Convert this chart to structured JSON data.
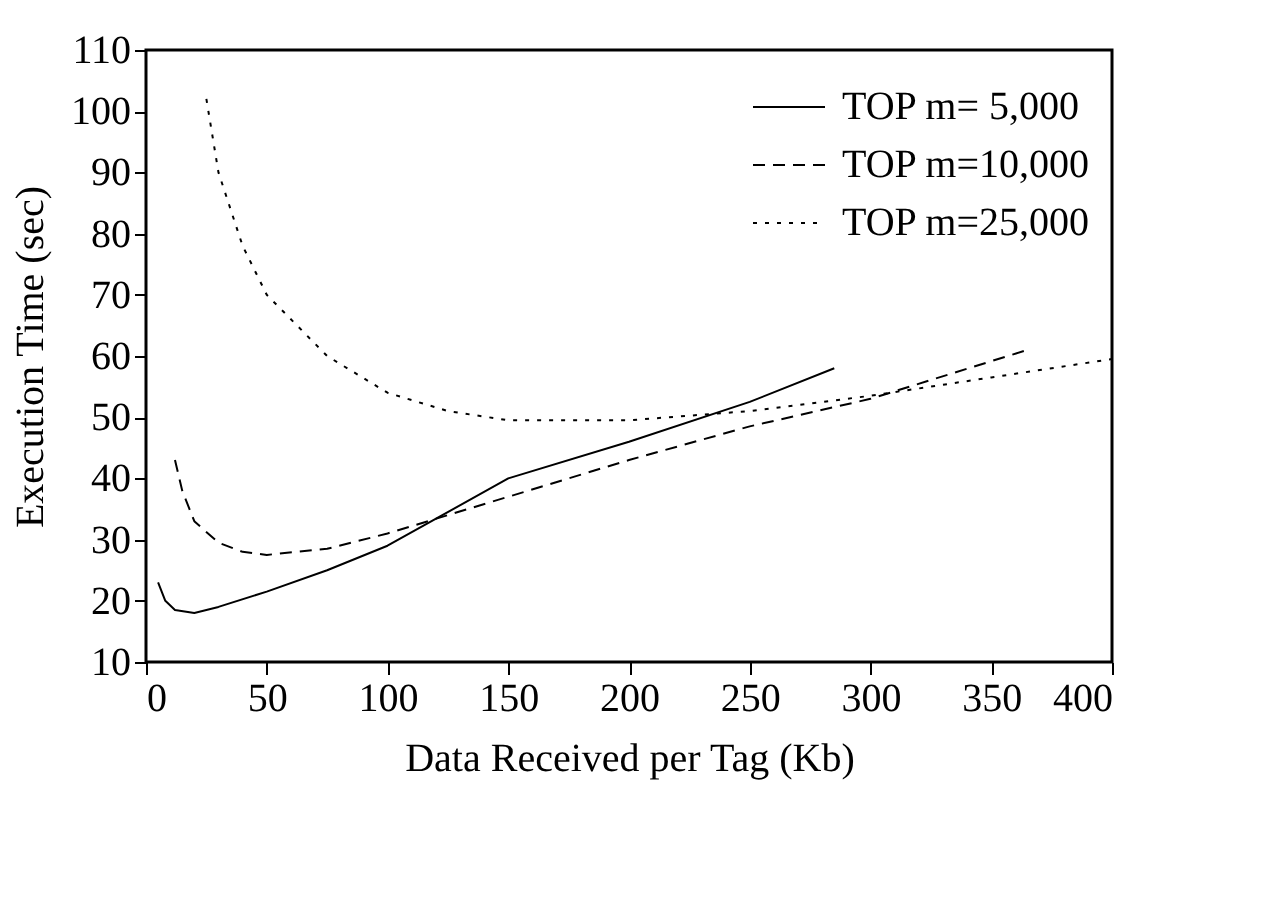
{
  "chart_data": {
    "type": "line",
    "xlabel": "Data Received per Tag (Kb)",
    "ylabel": "Execution Time (sec)",
    "xlim": [
      0,
      400
    ],
    "xticks": [
      0,
      50,
      100,
      150,
      200,
      250,
      300,
      350,
      400
    ],
    "ylim": [
      10,
      110
    ],
    "yticks": [
      10,
      20,
      30,
      40,
      50,
      60,
      70,
      80,
      90,
      100,
      110
    ],
    "grid": false,
    "legend": "top right",
    "marker": "none",
    "series": [
      {
        "name": "TOP m= 5,000",
        "color": "#000000",
        "line_style": "solid",
        "x": [
          5,
          8,
          12,
          20,
          30,
          50,
          75,
          100,
          150,
          200,
          250,
          285
        ],
        "values": [
          23,
          20,
          18.5,
          18,
          19,
          21.5,
          25,
          29,
          40,
          46,
          52.5,
          58
        ]
      },
      {
        "name": "TOP m=10,000",
        "color": "#000000",
        "line_style": "dashed",
        "x": [
          12,
          15,
          20,
          30,
          40,
          50,
          75,
          100,
          150,
          200,
          250,
          300,
          365
        ],
        "values": [
          43,
          38,
          33,
          29.5,
          28,
          27.5,
          28.5,
          31,
          37,
          43,
          48.5,
          53,
          61
        ]
      },
      {
        "name": "TOP m=25,000",
        "color": "#000000",
        "line_style": "dotted",
        "x": [
          25,
          30,
          40,
          50,
          75,
          100,
          125,
          150,
          200,
          250,
          300,
          350,
          400
        ],
        "values": [
          102,
          90,
          78,
          70,
          60,
          54,
          51,
          49.5,
          49.5,
          51,
          53.5,
          56.5,
          59.5
        ]
      }
    ]
  }
}
